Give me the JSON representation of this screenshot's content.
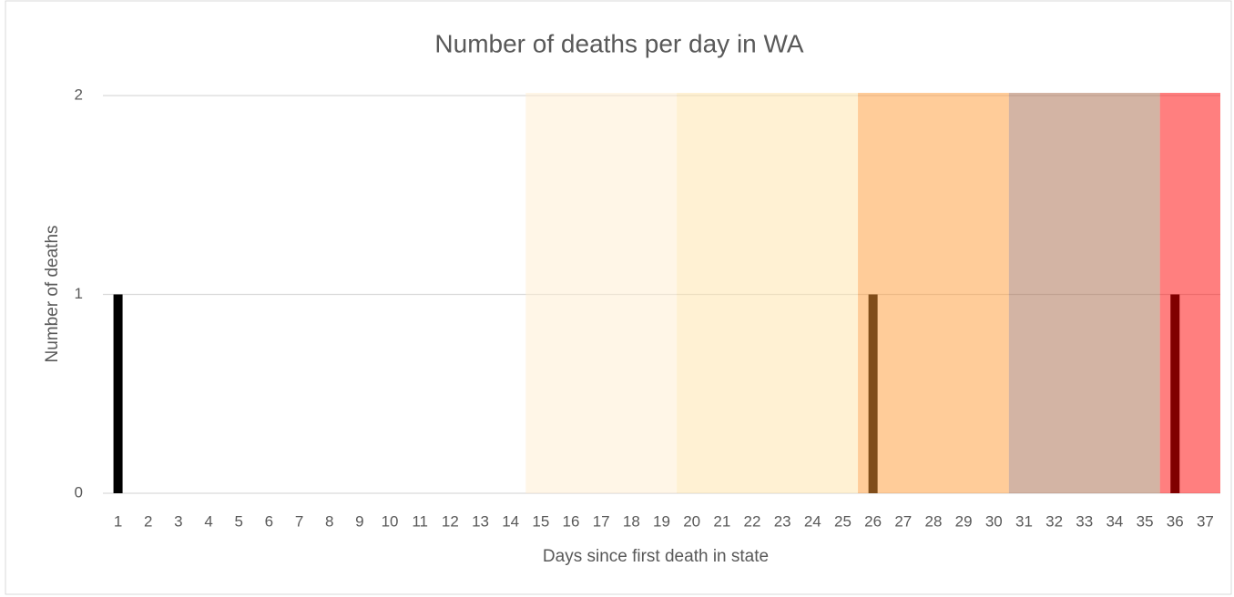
{
  "chart_data": {
    "type": "bar",
    "title": "Number of deaths per day in WA",
    "x_label": "Days since first death in state",
    "y_label": "Number of deaths",
    "categories": [
      "1",
      "2",
      "3",
      "4",
      "5",
      "6",
      "7",
      "8",
      "9",
      "10",
      "11",
      "12",
      "13",
      "14",
      "15",
      "16",
      "17",
      "18",
      "19",
      "20",
      "21",
      "22",
      "23",
      "24",
      "25",
      "26",
      "27",
      "28",
      "29",
      "30",
      "31",
      "32",
      "33",
      "34",
      "35",
      "36",
      "37"
    ],
    "values": [
      1,
      0,
      0,
      0,
      0,
      0,
      0,
      0,
      0,
      0,
      0,
      0,
      0,
      0,
      0,
      0,
      0,
      0,
      0,
      0,
      0,
      0,
      0,
      0,
      0,
      1,
      0,
      0,
      0,
      0,
      0,
      0,
      0,
      0,
      0,
      1,
      0
    ],
    "color": "#000000",
    "ylim": [
      0,
      2
    ],
    "yticks": [
      0,
      1,
      2
    ],
    "grid": true,
    "bands": [
      {
        "start": 15,
        "end": 19,
        "color": "#ffedd0"
      },
      {
        "start": 20,
        "end": 25,
        "color": "#ffe4a8"
      },
      {
        "start": 26,
        "end": 30,
        "color": "#ff9a33"
      },
      {
        "start": 31,
        "end": 35,
        "color": "#a86a4a"
      },
      {
        "start": 36,
        "end": 37,
        "color": "#ff0000"
      }
    ]
  }
}
